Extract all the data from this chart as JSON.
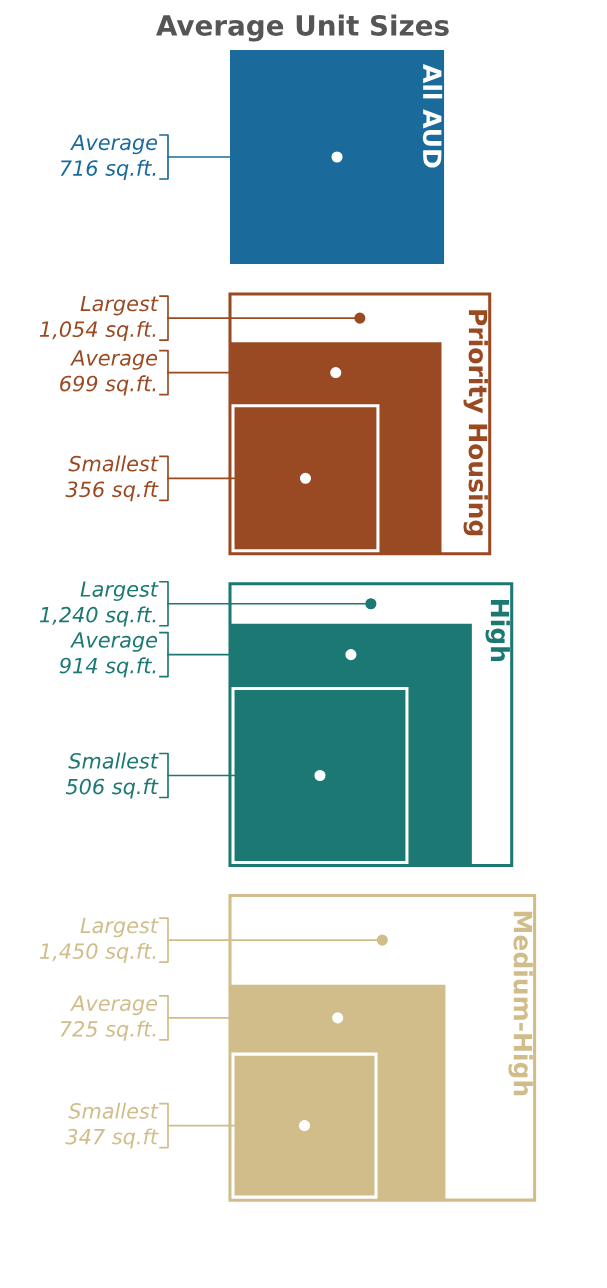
{
  "chart_data": [
    {
      "type": "other",
      "title": "Average Unit Sizes",
      "subtitle": "All AUD",
      "color": "#1a6a9c",
      "categories": [
        "Average"
      ],
      "values": [
        716
      ],
      "value_labels": [
        "716 sq.ft."
      ]
    },
    {
      "type": "other",
      "subtitle": "Priority Housing",
      "color": "#9a4a22",
      "categories": [
        "Largest",
        "Average",
        "Smallest"
      ],
      "values": [
        1054,
        699,
        356
      ],
      "value_labels": [
        "1,054 sq.ft.",
        "699 sq.ft.",
        "356 sq.ft"
      ]
    },
    {
      "type": "other",
      "subtitle": "High",
      "color": "#1c7873",
      "categories": [
        "Largest",
        "Average",
        "Smallest"
      ],
      "values": [
        1240,
        914,
        506
      ],
      "value_labels": [
        "1,240 sq.ft.",
        "914 sq.ft.",
        "506 sq.ft"
      ]
    },
    {
      "type": "other",
      "subtitle": "Medium-High",
      "color": "#d0bd8a",
      "categories": [
        "Largest",
        "Average",
        "Smallest"
      ],
      "values": [
        1450,
        725,
        347
      ],
      "value_labels": [
        "1,450 sq.ft.",
        "725 sq.ft.",
        "347 sq.ft"
      ]
    }
  ]
}
